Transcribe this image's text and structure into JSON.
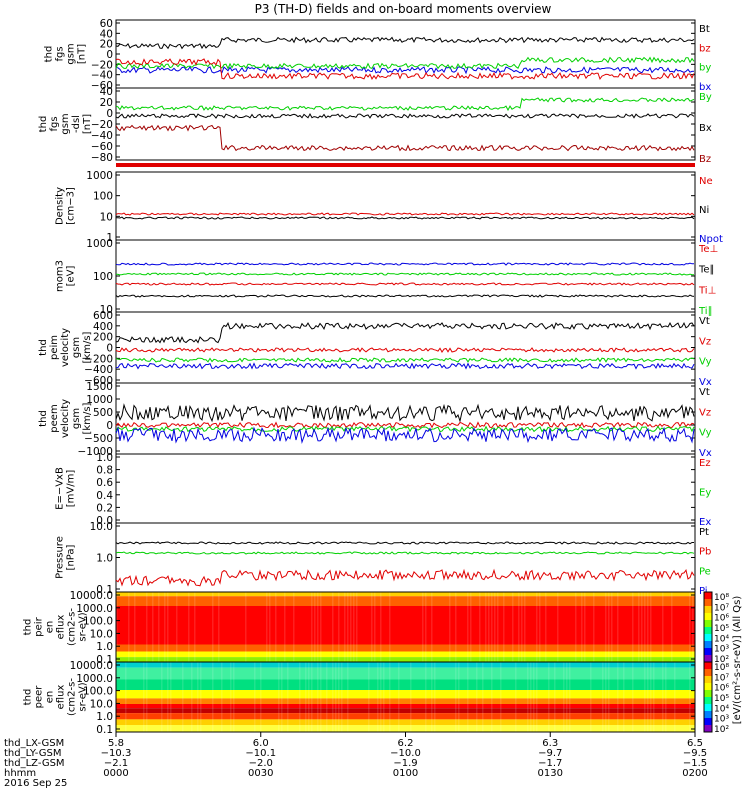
{
  "title": "P3 (TH-D) fields and on-board moments overview",
  "colors": {
    "black": "#000000",
    "red": "#e00000",
    "green": "#00d000",
    "blue": "#0000e0",
    "darkred": "#a00000"
  },
  "panels": [
    {
      "id": "p1",
      "ylabel": [
        "thd",
        "fgs",
        "gsm",
        "[nT]"
      ],
      "ticks": [
        "60",
        "40",
        "20",
        "0",
        "−20",
        "−40",
        "−60"
      ],
      "legend": [
        {
          "t": "Bt",
          "c": "black"
        },
        {
          "t": "bz",
          "c": "red"
        },
        {
          "t": "by",
          "c": "green"
        },
        {
          "t": "bx",
          "c": "blue"
        }
      ]
    },
    {
      "id": "p2",
      "ylabel": [
        "thd",
        "fgs",
        "gsm",
        "-dsl",
        "[nT]"
      ],
      "ticks": [
        "40",
        "20",
        "0",
        "−20",
        "−40",
        "−60",
        "−80"
      ],
      "legend": [
        {
          "t": "By",
          "c": "green"
        },
        {
          "t": "Bx",
          "c": "black"
        },
        {
          "t": "Bz",
          "c": "darkred"
        }
      ]
    },
    {
      "id": "p3",
      "ylabel": [
        "Density",
        "[cm−3]"
      ],
      "ticks": [
        "1000",
        "100",
        "10",
        "1"
      ],
      "legend": [
        {
          "t": "Ne",
          "c": "red"
        },
        {
          "t": "Ni",
          "c": "black"
        },
        {
          "t": "Npot",
          "c": "blue"
        }
      ]
    },
    {
      "id": "p4",
      "ylabel": [
        "mom3",
        "[eV]"
      ],
      "ticks": [
        "1000",
        "100",
        "10"
      ],
      "legend": [
        {
          "t": "Te⊥",
          "c": "red"
        },
        {
          "t": "Te∥",
          "c": "black"
        },
        {
          "t": "Ti⊥",
          "c": "red"
        },
        {
          "t": "Ti∥",
          "c": "green"
        }
      ]
    },
    {
      "id": "p5",
      "ylabel": [
        "thd",
        "peim",
        "velocity",
        "gsm",
        "[km/s]"
      ],
      "ticks": [
        "600",
        "400",
        "200",
        "0",
        "−200",
        "−400",
        "−600"
      ],
      "legend": [
        {
          "t": "Vt",
          "c": "black"
        },
        {
          "t": "Vz",
          "c": "red"
        },
        {
          "t": "Vy",
          "c": "green"
        },
        {
          "t": "Vx",
          "c": "blue"
        }
      ]
    },
    {
      "id": "p6",
      "ylabel": [
        "thd",
        "peem",
        "velocity",
        "gsm",
        "[km/s]"
      ],
      "ticks": [
        "1500",
        "1000",
        "500",
        "0",
        "−500",
        "−1000"
      ],
      "legend": [
        {
          "t": "Vt",
          "c": "black"
        },
        {
          "t": "Vz",
          "c": "red"
        },
        {
          "t": "Vy",
          "c": "green"
        },
        {
          "t": "Vx",
          "c": "blue"
        }
      ]
    },
    {
      "id": "p7",
      "ylabel": [
        "E=−VxB",
        "[mV/m]"
      ],
      "ticks": [
        "1.0",
        "0.8",
        "0.6",
        "0.4",
        "0.2",
        "0.0"
      ],
      "legend": [
        {
          "t": "Ez",
          "c": "red"
        },
        {
          "t": "Ey",
          "c": "green"
        },
        {
          "t": "Ex",
          "c": "blue"
        }
      ]
    },
    {
      "id": "p8",
      "ylabel": [
        "Pressure",
        "[nPa]"
      ],
      "ticks": [
        "10.0",
        "1.0",
        "0.1"
      ],
      "legend": [
        {
          "t": "Pt",
          "c": "black"
        },
        {
          "t": "Pb",
          "c": "red"
        },
        {
          "t": "Pe",
          "c": "green"
        },
        {
          "t": "Pi",
          "c": "blue"
        }
      ]
    },
    {
      "id": "p9",
      "ylabel": [
        "thd",
        "peir",
        "en",
        "eflux",
        "(cm2-s-",
        "sr-eV)"
      ],
      "ticks": [
        "10000.0",
        "1000.0",
        "100.0",
        "10.0",
        "1.0",
        "0.1"
      ],
      "legend": []
    },
    {
      "id": "p10",
      "ylabel": [
        "thd",
        "peer",
        "en",
        "eflux",
        "(cm2-s-",
        "sr-eV)"
      ],
      "ticks": [
        "10000.0",
        "1000.0",
        "100.0",
        "10.0",
        "1.0",
        "0.1"
      ],
      "legend": []
    }
  ],
  "colorbar": {
    "ticks": [
      "10⁸",
      "10⁷",
      "10⁶",
      "10⁵",
      "10⁴",
      "10³",
      "10²",
      "10⁸",
      "10⁷",
      "10⁶",
      "10⁵",
      "10⁴",
      "10³",
      "10²"
    ],
    "label": "[eV/(cm²-s-sr-eV)] (All Qs)"
  },
  "xaxis": {
    "row_labels": [
      "thd_LX-GSM",
      "thd_LY-GSM",
      "thd_LZ-GSM",
      "hhmm",
      "2016 Sep 25"
    ],
    "ticks": [
      {
        "lx": "5.8",
        "ly": "−10.3",
        "lz": "−2.1",
        "hhmm": "0000"
      },
      {
        "lx": "6.0",
        "ly": "−10.1",
        "lz": "−2.0",
        "hhmm": "0030"
      },
      {
        "lx": "6.2",
        "ly": "−10.0",
        "lz": "−1.9",
        "hhmm": "0100"
      },
      {
        "lx": "6.3",
        "ly": "−9.7",
        "lz": "−1.7",
        "hhmm": "0130"
      },
      {
        "lx": "6.5",
        "ly": "−9.5",
        "lz": "−1.5",
        "hhmm": "0200"
      }
    ]
  },
  "chart_data": {
    "type": "line",
    "title": "P3 (TH-D) fields and on-board moments overview",
    "x": [
      "0000",
      "0030",
      "0100",
      "0130",
      "0200"
    ],
    "series": [
      {
        "name": "Bt",
        "values": [
          28,
          35,
          36,
          34,
          33
        ]
      },
      {
        "name": "bz",
        "values": [
          -10,
          -25,
          -22,
          -26,
          -27
        ]
      },
      {
        "name": "by",
        "values": [
          -2,
          2,
          5,
          10,
          8
        ]
      },
      {
        "name": "bx",
        "values": [
          -8,
          -5,
          -2,
          4,
          5
        ]
      },
      {
        "name": "By",
        "values": [
          10,
          15,
          20,
          25,
          28
        ]
      },
      {
        "name": "Bx",
        "values": [
          -5,
          -8,
          -10,
          -6,
          -3
        ]
      },
      {
        "name": "Bz",
        "values": [
          -40,
          -75,
          -70,
          -75,
          -73
        ]
      },
      {
        "name": "Ne",
        "values": [
          13,
          13,
          14,
          13,
          14
        ]
      },
      {
        "name": "Ni",
        "values": [
          8,
          7,
          7,
          8,
          7
        ]
      },
      {
        "name": "Te⊥",
        "values": [
          55,
          60,
          60,
          58,
          58
        ]
      },
      {
        "name": "Te∥",
        "values": [
          220,
          230,
          230,
          225,
          225
        ]
      },
      {
        "name": "Ti⊥",
        "values": [
          30,
          32,
          32,
          31,
          31
        ]
      },
      {
        "name": "Ti∥",
        "values": [
          140,
          150,
          150,
          148,
          148
        ]
      },
      {
        "name": "Vt",
        "values": [
          350,
          450,
          480,
          440,
          450
        ]
      },
      {
        "name": "Vz",
        "values": [
          -50,
          -100,
          -80,
          -60,
          -80
        ]
      },
      {
        "name": "Vy",
        "values": [
          -150,
          -300,
          -280,
          -250,
          -260
        ]
      },
      {
        "name": "Vx",
        "values": [
          -200,
          -350,
          -380,
          -320,
          -350
        ]
      },
      {
        "name": "Pt",
        "values": [
          3,
          3.5,
          3.5,
          3.3,
          3.4
        ]
      },
      {
        "name": "Pb",
        "values": [
          0.2,
          0.4,
          0.35,
          0.35,
          0.4
        ]
      },
      {
        "name": "Pe",
        "values": [
          1.5,
          1.8,
          1.8,
          1.7,
          1.8
        ]
      }
    ]
  }
}
